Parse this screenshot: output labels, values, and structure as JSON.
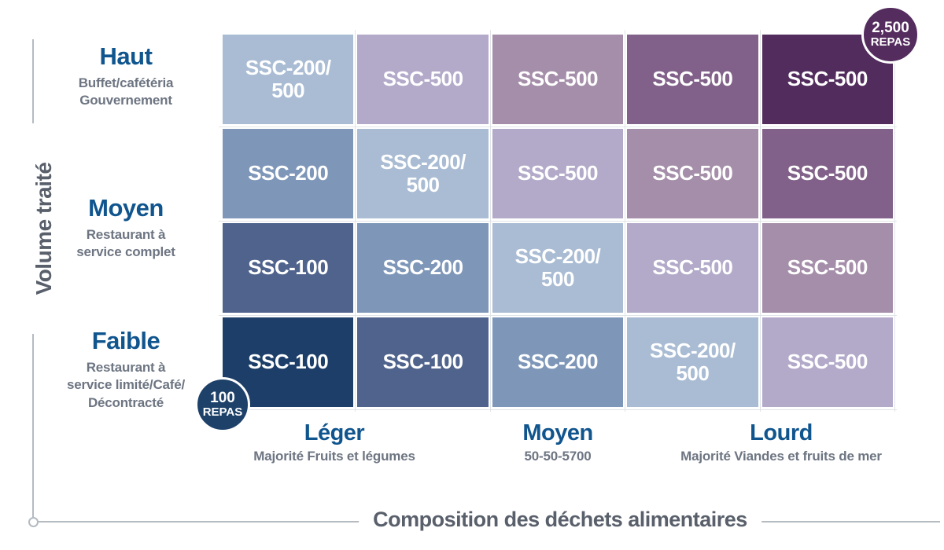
{
  "axes": {
    "y_title": "Volume traité",
    "x_title": "Composition des déchets alimentaires"
  },
  "row_labels": [
    {
      "title": "Haut",
      "subtitle": "Buffet/cafétéria\nGouvernement"
    },
    {
      "title": "Moyen",
      "subtitle": "Restaurant à\nservice complet"
    },
    {
      "title": "Faible",
      "subtitle": "Restaurant à\nservice limité/Café/\nDécontracté"
    }
  ],
  "col_labels": [
    {
      "title": "Léger",
      "subtitle": "Majorité Fruits et légumes"
    },
    {
      "title": "Moyen",
      "subtitle": "50-50-5700"
    },
    {
      "title": "Lourd",
      "subtitle": "Majorité Viandes et fruits de mer"
    }
  ],
  "badges": {
    "max": {
      "value": "2,500",
      "unit": "REPAS",
      "color": "#542c5e"
    },
    "min": {
      "value": "100",
      "unit": "REPAS",
      "color": "#1d4169"
    }
  },
  "grid": {
    "rows": [
      {
        "cells": [
          {
            "label": "SSC-200/\n500",
            "color": "#a9bcd3"
          },
          {
            "label": "SSC-500",
            "color": "#b3aaca"
          },
          {
            "label": "SSC-500",
            "color": "#a58ea9"
          },
          {
            "label": "SSC-500",
            "color": "#816189"
          },
          {
            "label": "SSC-500",
            "color": "#522c5c"
          }
        ]
      },
      {
        "cells": [
          {
            "label": "SSC-200",
            "color": "#7e97b9"
          },
          {
            "label": "SSC-200/\n500",
            "color": "#a9bcd3"
          },
          {
            "label": "SSC-500",
            "color": "#b3aaca"
          },
          {
            "label": "SSC-500",
            "color": "#a58ea9"
          },
          {
            "label": "SSC-500",
            "color": "#816189"
          }
        ]
      },
      {
        "cells": [
          {
            "label": "SSC-100",
            "color": "#4f638c"
          },
          {
            "label": "SSC-200",
            "color": "#7e97b9"
          },
          {
            "label": "SSC-200/\n500",
            "color": "#a9bcd3"
          },
          {
            "label": "SSC-500",
            "color": "#b3aaca"
          },
          {
            "label": "SSC-500",
            "color": "#a58ea9"
          }
        ]
      },
      {
        "cells": [
          {
            "label": "SSC-100",
            "color": "#1c3e68"
          },
          {
            "label": "SSC-100",
            "color": "#4f638c"
          },
          {
            "label": "SSC-200",
            "color": "#7e97b9"
          },
          {
            "label": "SSC-200/\n500",
            "color": "#a9bcd3"
          },
          {
            "label": "SSC-500",
            "color": "#b3aaca"
          }
        ]
      }
    ]
  },
  "colors": {
    "label_blue": "#10558e",
    "subtitle_gray": "#6d7582",
    "axis_text_gray": "#59606b",
    "axis_line_gray": "#b4bbc1",
    "cell_text": "#ffffff"
  },
  "chart_data": {
    "type": "heatmap",
    "title": "Matrice de sélection SSC (volume traité × composition des déchets)",
    "xlabel": "Composition des déchets alimentaires",
    "ylabel": "Volume traité",
    "rows": 4,
    "columns": 5,
    "x_groups": [
      "Léger — Majorité Fruits et légumes",
      "Moyen — 50-50-5700",
      "Lourd — Majorité Viandes et fruits de mer"
    ],
    "y_categories": [
      "Haut — Buffet/cafétéria, Gouvernement",
      "Moyen — Restaurant à service complet",
      "Faible — Restaurant à service limité/Café/Décontracté"
    ],
    "matrix": [
      [
        "SSC-200/500",
        "SSC-500",
        "SSC-500",
        "SSC-500",
        "SSC-500"
      ],
      [
        "SSC-200",
        "SSC-200/500",
        "SSC-500",
        "SSC-500",
        "SSC-500"
      ],
      [
        "SSC-100",
        "SSC-200",
        "SSC-200/500",
        "SSC-500",
        "SSC-500"
      ],
      [
        "SSC-100",
        "SSC-100",
        "SSC-200",
        "SSC-200/500",
        "SSC-500"
      ]
    ],
    "color_scale": [
      "#1c3e68",
      "#4f638c",
      "#7e97b9",
      "#a9bcd3",
      "#b3aaca",
      "#a58ea9",
      "#816189",
      "#522c5c"
    ],
    "annotations": [
      {
        "text": "2,500 REPAS",
        "position": "top-right"
      },
      {
        "text": "100 REPAS",
        "position": "bottom-left"
      }
    ],
    "legend": "none",
    "grid_on": false
  }
}
